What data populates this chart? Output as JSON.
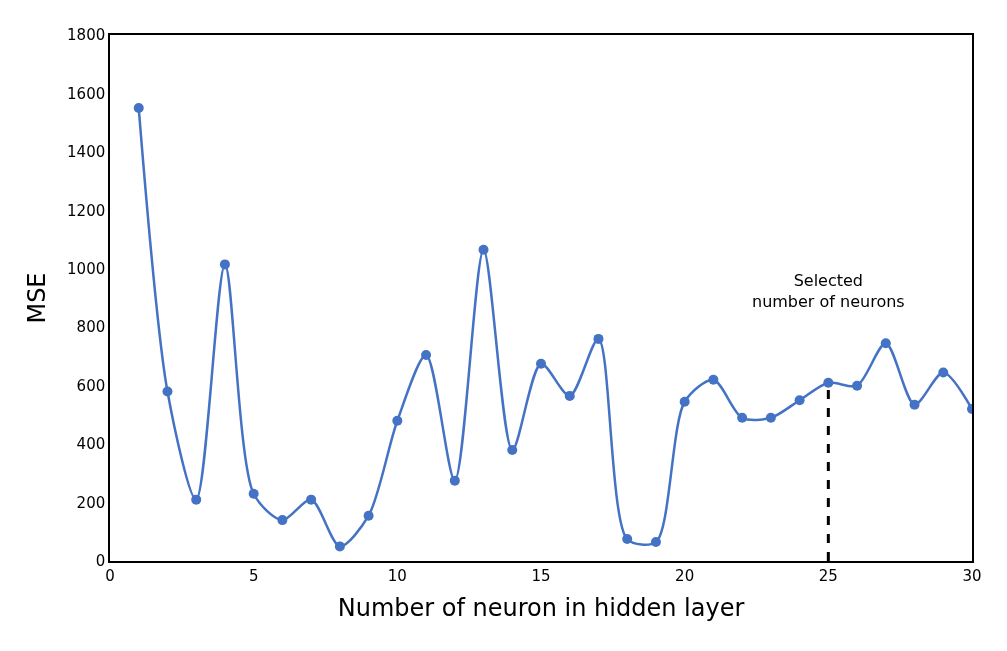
{
  "chart_data": {
    "type": "line",
    "xlabel": "Number of neuron in hidden layer",
    "ylabel": "MSE",
    "x": [
      1,
      2,
      3,
      4,
      5,
      6,
      7,
      8,
      9,
      10,
      11,
      12,
      13,
      14,
      15,
      16,
      17,
      18,
      19,
      20,
      21,
      22,
      23,
      24,
      25,
      26,
      27,
      28,
      29,
      30
    ],
    "series": [
      {
        "color": "#4472c4",
        "values": [
          1550,
          580,
          210,
          1015,
          230,
          140,
          210,
          50,
          155,
          480,
          705,
          275,
          1065,
          380,
          675,
          565,
          760,
          75,
          65,
          545,
          620,
          490,
          490,
          550,
          610,
          600,
          745,
          535,
          645,
          520
        ]
      }
    ],
    "xlim": [
      0,
      30
    ],
    "xticks": [
      0,
      5,
      10,
      15,
      20,
      25,
      30
    ],
    "ylim": [
      0,
      1800
    ],
    "yticks": [
      0,
      200,
      400,
      600,
      800,
      1000,
      1200,
      1400,
      1600,
      1800
    ],
    "marker": "circle",
    "line_style": "solid",
    "ref_lines": [
      {
        "axis": "x",
        "value": 25,
        "color": "#000000",
        "line_style": "dashed",
        "label": "Selected\nnumber of neurons"
      }
    ]
  }
}
